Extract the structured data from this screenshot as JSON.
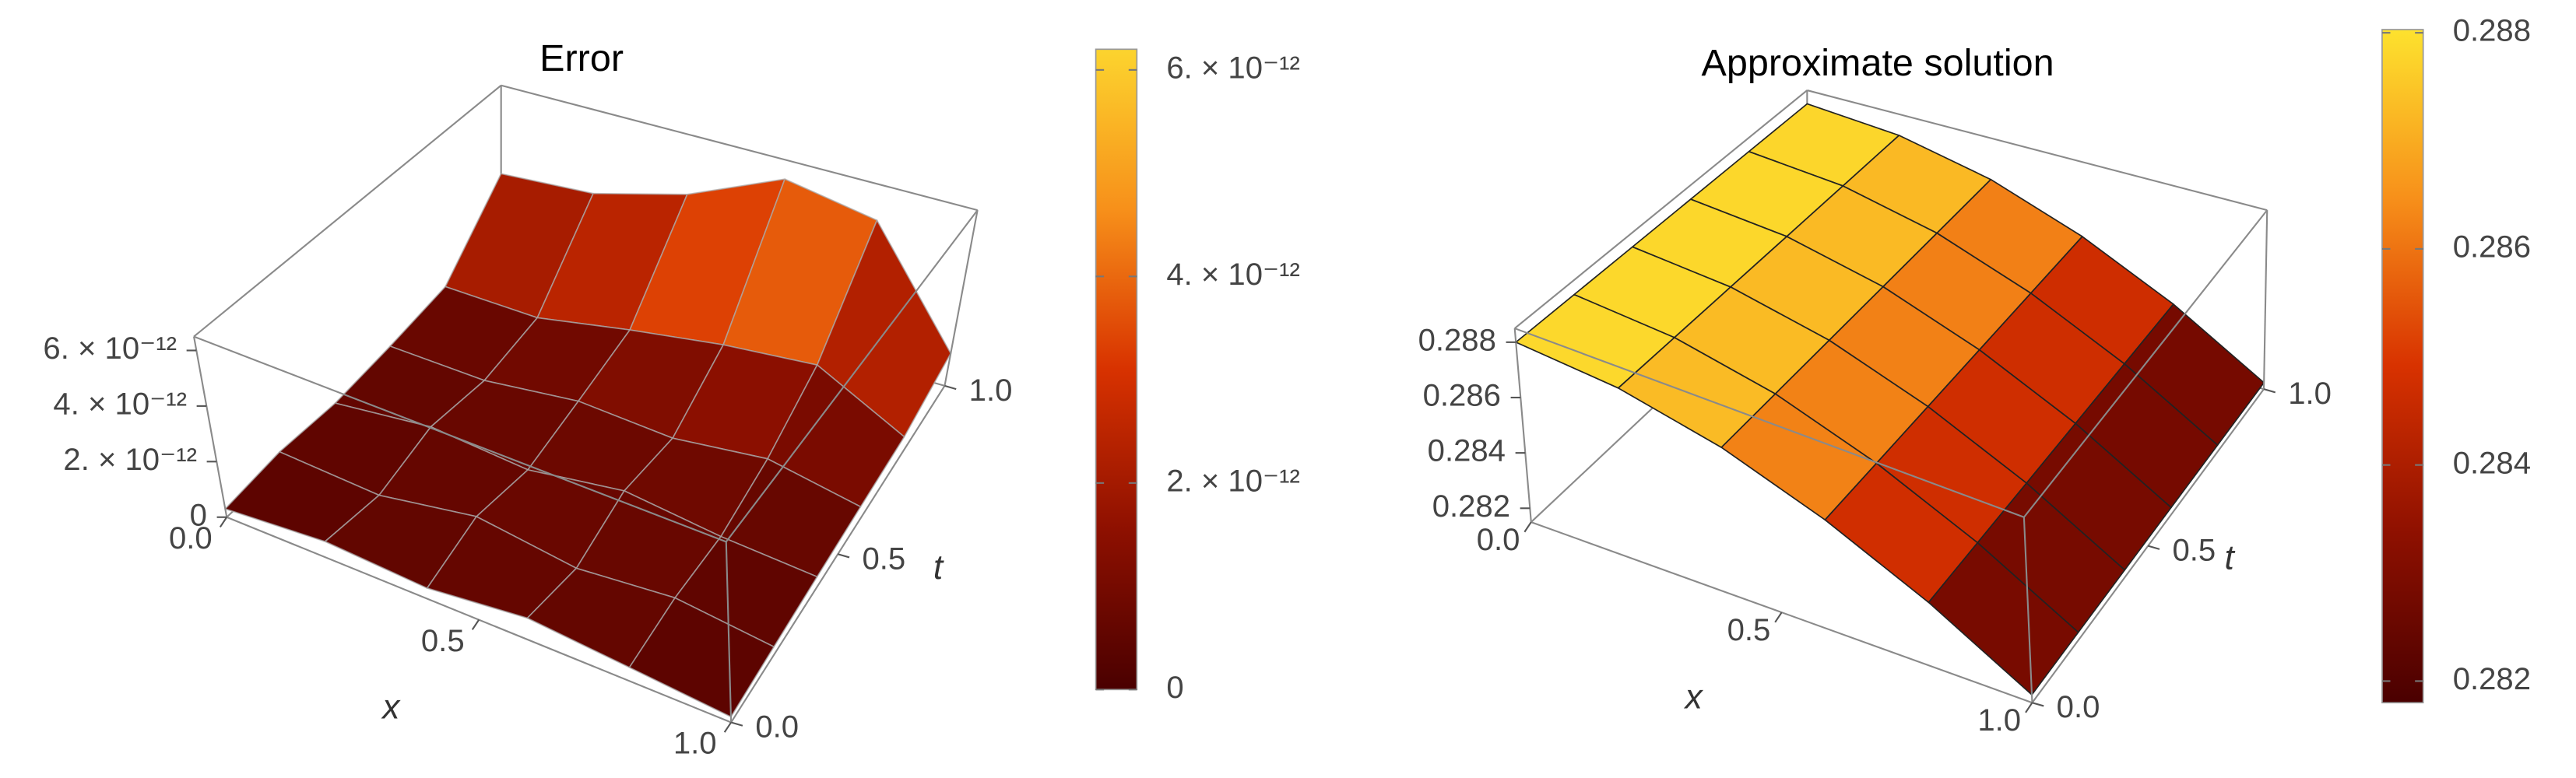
{
  "chart_data": [
    {
      "type": "surface",
      "title": "Error",
      "xlabel": "x",
      "ylabel": "t",
      "x": [
        0,
        0.2,
        0.4,
        0.6,
        0.8,
        1
      ],
      "y": [
        0,
        0.2,
        0.4,
        0.6,
        0.8,
        1
      ],
      "z": [
        [
          3e-13,
          6e-13,
          4e-13,
          8e-13,
          5e-13,
          2e-13
        ],
        [
          5e-13,
          3e-13,
          9e-13,
          4e-13,
          7e-13,
          3e-13
        ],
        [
          4e-13,
          8e-13,
          5e-13,
          1e-12,
          6e-13,
          4e-13
        ],
        [
          6e-13,
          5e-13,
          9e-13,
          7e-13,
          1.1e-12,
          5e-13
        ],
        [
          9e-13,
          8e-13,
          1.4e-12,
          1.9e-12,
          2.2e-12,
          6e-13
        ],
        [
          3.2e-12,
          3.4e-12,
          4.3e-12,
          5.8e-12,
          5.2e-12,
          1.2e-12
        ]
      ],
      "xlim": [
        0,
        1
      ],
      "ylim": [
        0,
        1
      ],
      "zlim": [
        0,
        6.5e-12
      ],
      "xticks": [
        {
          "value": 0,
          "label": "0.0"
        },
        0.5,
        {
          "value": 1,
          "label": "1.0"
        }
      ],
      "yticks": [
        {
          "value": 0,
          "label": "0.0"
        },
        0.5,
        {
          "value": 1,
          "label": "1.0"
        }
      ],
      "zticks": [
        0,
        {
          "value": 2e-12,
          "label": "2. × 10⁻¹²"
        },
        {
          "value": 4e-12,
          "label": "4. × 10⁻¹²"
        },
        {
          "value": 6e-12,
          "label": "6. × 10⁻¹²"
        }
      ],
      "colorbar": {
        "lim": [
          0,
          6.2e-12
        ],
        "ticks": [
          0,
          {
            "value": 2e-12,
            "label": "2. × 10⁻¹²"
          },
          {
            "value": 4e-12,
            "label": "4. × 10⁻¹²"
          },
          {
            "value": 6e-12,
            "label": "6. × 10⁻¹²"
          }
        ]
      },
      "colorscale": [
        "#4a0000",
        "#8e1000",
        "#d83200",
        "#f7901a",
        "#fcd42e"
      ],
      "mesh_color": "rgba(170,170,170,0.75)"
    },
    {
      "type": "surface",
      "title": "Approximate  solution",
      "xlabel": "x",
      "ylabel": "t",
      "x": [
        0,
        0.2,
        0.4,
        0.6,
        0.8,
        1
      ],
      "y": [
        0,
        0.2,
        0.4,
        0.6,
        0.8,
        1
      ],
      "z": [
        [
          0.288,
          0.2877,
          0.2869,
          0.2856,
          0.2839,
          0.2818
        ],
        [
          0.28799,
          0.28769,
          0.28689,
          0.28559,
          0.28389,
          0.28179
        ],
        [
          0.28798,
          0.28768,
          0.28688,
          0.28558,
          0.28388,
          0.28178
        ],
        [
          0.28797,
          0.28767,
          0.28687,
          0.28557,
          0.28387,
          0.28177
        ],
        [
          0.28796,
          0.28766,
          0.28686,
          0.28556,
          0.28386,
          0.28176
        ],
        [
          0.28795,
          0.28765,
          0.28685,
          0.28555,
          0.28385,
          0.28175
        ]
      ],
      "xlim": [
        0,
        1
      ],
      "ylim": [
        0,
        1
      ],
      "zlim": [
        0.2815,
        0.2885
      ],
      "xticks": [
        {
          "value": 0,
          "label": "0.0"
        },
        0.5,
        {
          "value": 1,
          "label": "1.0"
        }
      ],
      "yticks": [
        {
          "value": 0,
          "label": "0.0"
        },
        0.5,
        {
          "value": 1,
          "label": "1.0"
        }
      ],
      "zticks": [
        0.282,
        0.284,
        0.286,
        0.288
      ],
      "colorbar": {
        "lim": [
          0.2818,
          0.28803
        ],
        "ticks": [
          0.282,
          0.284,
          0.286,
          0.288
        ]
      },
      "colorscale": [
        "#4a0000",
        "#8e1000",
        "#d83200",
        "#f7901a",
        "#fde22e"
      ],
      "mesh_color": "#222"
    }
  ]
}
